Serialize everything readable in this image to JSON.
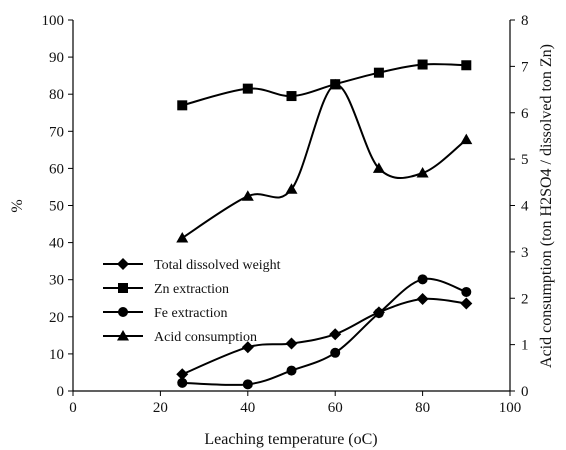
{
  "chart_data": {
    "type": "line",
    "title": "",
    "xlabel": "Leaching temperature (oC)",
    "ylabel": "%",
    "y2label": "Acid consumption (ton H2SO4 / dissolved ton Zn)",
    "xlim": [
      0,
      100
    ],
    "ylim": [
      0,
      100
    ],
    "y2lim": [
      0,
      8
    ],
    "x_ticks": [
      "0",
      "20",
      "40",
      "60",
      "80",
      "100"
    ],
    "y_ticks": [
      "0",
      "10",
      "20",
      "30",
      "40",
      "50",
      "60",
      "70",
      "80",
      "90",
      "100"
    ],
    "y2_ticks": [
      "0",
      "1",
      "2",
      "3",
      "4",
      "5",
      "6",
      "7",
      "8"
    ],
    "grid": false,
    "legend_position": "center-left",
    "series": [
      {
        "name": "Total dissolved weight",
        "axis": "left",
        "marker": "diamond",
        "x": [
          25,
          40,
          50,
          60,
          70,
          80,
          90
        ],
        "values": [
          4.5,
          11.8,
          12.8,
          15.3,
          21.2,
          24.8,
          23.6
        ]
      },
      {
        "name": "Zn extraction",
        "axis": "left",
        "marker": "square",
        "x": [
          25,
          40,
          50,
          60,
          70,
          80,
          90
        ],
        "values": [
          77,
          81.5,
          79.5,
          82.7,
          85.8,
          88,
          87.8
        ]
      },
      {
        "name": "Fe extraction",
        "axis": "left",
        "marker": "circle",
        "x": [
          25,
          40,
          50,
          60,
          70,
          80,
          90
        ],
        "values": [
          2.2,
          1.8,
          5.5,
          10.3,
          21,
          30.1,
          26.7
        ]
      },
      {
        "name": "Acid consumption",
        "axis": "right",
        "marker": "triangle",
        "x": [
          25,
          40,
          50,
          60,
          70,
          80,
          90
        ],
        "values": [
          3.3,
          4.2,
          4.35,
          6.6,
          4.8,
          4.7,
          5.42
        ]
      }
    ]
  }
}
